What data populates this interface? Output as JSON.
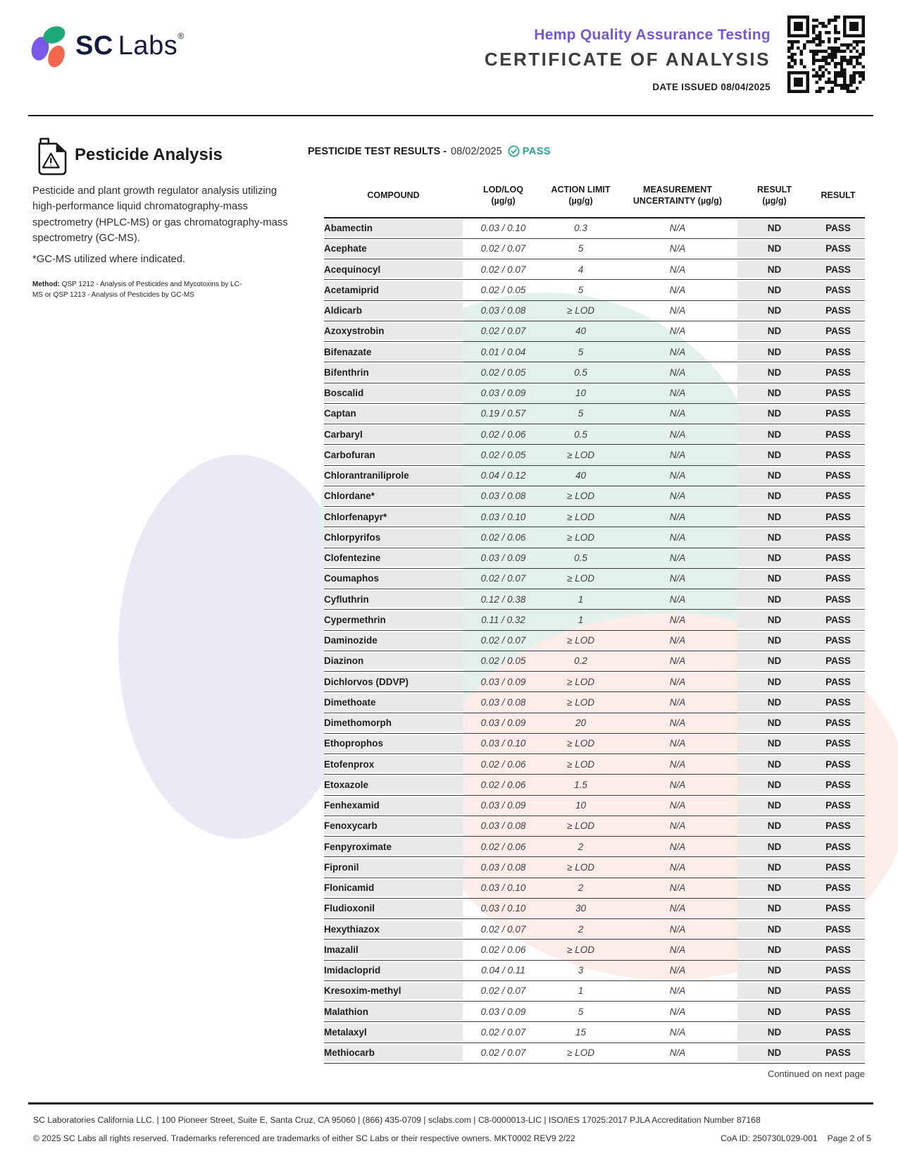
{
  "header": {
    "logo_sc": "SC",
    "logo_labs": "Labs",
    "logo_reg": "®",
    "program": "Hemp Quality Assurance Testing",
    "title": "CERTIFICATE OF ANALYSIS",
    "date_issued": "DATE ISSUED 08/04/2025"
  },
  "section": {
    "title": "Pesticide Analysis",
    "description": "Pesticide and plant growth regulator analysis utilizing high-performance liquid chromatography-mass spectrometry (HPLC-MS) or gas chromatography-mass spectrometry (GC-MS).",
    "note": "*GC-MS utilized where indicated.",
    "method_label": "Method:",
    "method_text": " QSP 1212 - Analysis of Pesticides and Mycotoxins by LC-MS or QSP 1213 - Analysis of Pesticides by GC-MS"
  },
  "results": {
    "heading": "PESTICIDE TEST RESULTS -",
    "date": "08/02/2025",
    "status": "PASS",
    "columns": [
      "COMPOUND",
      "LOD/LOQ\n(µg/g)",
      "ACTION LIMIT\n(µg/g)",
      "MEASUREMENT\nUNCERTAINTY (µg/g)",
      "RESULT\n(µg/g)",
      "RESULT"
    ],
    "rows": [
      {
        "compound": "Abamectin",
        "lod_loq": "0.03 / 0.10",
        "action_limit": "0.3",
        "uncertainty": "N/A",
        "result": "ND",
        "status": "PASS"
      },
      {
        "compound": "Acephate",
        "lod_loq": "0.02 / 0.07",
        "action_limit": "5",
        "uncertainty": "N/A",
        "result": "ND",
        "status": "PASS"
      },
      {
        "compound": "Acequinocyl",
        "lod_loq": "0.02 / 0.07",
        "action_limit": "4",
        "uncertainty": "N/A",
        "result": "ND",
        "status": "PASS"
      },
      {
        "compound": "Acetamiprid",
        "lod_loq": "0.02 / 0.05",
        "action_limit": "5",
        "uncertainty": "N/A",
        "result": "ND",
        "status": "PASS"
      },
      {
        "compound": "Aldicarb",
        "lod_loq": "0.03 / 0.08",
        "action_limit": "≥ LOD",
        "uncertainty": "N/A",
        "result": "ND",
        "status": "PASS"
      },
      {
        "compound": "Azoxystrobin",
        "lod_loq": "0.02 / 0.07",
        "action_limit": "40",
        "uncertainty": "N/A",
        "result": "ND",
        "status": "PASS"
      },
      {
        "compound": "Bifenazate",
        "lod_loq": "0.01 / 0.04",
        "action_limit": "5",
        "uncertainty": "N/A",
        "result": "ND",
        "status": "PASS"
      },
      {
        "compound": "Bifenthrin",
        "lod_loq": "0.02 / 0.05",
        "action_limit": "0.5",
        "uncertainty": "N/A",
        "result": "ND",
        "status": "PASS"
      },
      {
        "compound": "Boscalid",
        "lod_loq": "0.03 / 0.09",
        "action_limit": "10",
        "uncertainty": "N/A",
        "result": "ND",
        "status": "PASS"
      },
      {
        "compound": "Captan",
        "lod_loq": "0.19 / 0.57",
        "action_limit": "5",
        "uncertainty": "N/A",
        "result": "ND",
        "status": "PASS"
      },
      {
        "compound": "Carbaryl",
        "lod_loq": "0.02 / 0.06",
        "action_limit": "0.5",
        "uncertainty": "N/A",
        "result": "ND",
        "status": "PASS"
      },
      {
        "compound": "Carbofuran",
        "lod_loq": "0.02 / 0.05",
        "action_limit": "≥ LOD",
        "uncertainty": "N/A",
        "result": "ND",
        "status": "PASS"
      },
      {
        "compound": "Chlorantraniliprole",
        "lod_loq": "0.04 / 0.12",
        "action_limit": "40",
        "uncertainty": "N/A",
        "result": "ND",
        "status": "PASS"
      },
      {
        "compound": "Chlordane*",
        "lod_loq": "0.03 / 0.08",
        "action_limit": "≥ LOD",
        "uncertainty": "N/A",
        "result": "ND",
        "status": "PASS"
      },
      {
        "compound": "Chlorfenapyr*",
        "lod_loq": "0.03 / 0.10",
        "action_limit": "≥ LOD",
        "uncertainty": "N/A",
        "result": "ND",
        "status": "PASS"
      },
      {
        "compound": "Chlorpyrifos",
        "lod_loq": "0.02 / 0.06",
        "action_limit": "≥ LOD",
        "uncertainty": "N/A",
        "result": "ND",
        "status": "PASS"
      },
      {
        "compound": "Clofentezine",
        "lod_loq": "0.03 / 0.09",
        "action_limit": "0.5",
        "uncertainty": "N/A",
        "result": "ND",
        "status": "PASS"
      },
      {
        "compound": "Coumaphos",
        "lod_loq": "0.02 / 0.07",
        "action_limit": "≥ LOD",
        "uncertainty": "N/A",
        "result": "ND",
        "status": "PASS"
      },
      {
        "compound": "Cyfluthrin",
        "lod_loq": "0.12 / 0.38",
        "action_limit": "1",
        "uncertainty": "N/A",
        "result": "ND",
        "status": "PASS"
      },
      {
        "compound": "Cypermethrin",
        "lod_loq": "0.11 / 0.32",
        "action_limit": "1",
        "uncertainty": "N/A",
        "result": "ND",
        "status": "PASS"
      },
      {
        "compound": "Daminozide",
        "lod_loq": "0.02 / 0.07",
        "action_limit": "≥ LOD",
        "uncertainty": "N/A",
        "result": "ND",
        "status": "PASS"
      },
      {
        "compound": "Diazinon",
        "lod_loq": "0.02 / 0.05",
        "action_limit": "0.2",
        "uncertainty": "N/A",
        "result": "ND",
        "status": "PASS"
      },
      {
        "compound": "Dichlorvos (DDVP)",
        "lod_loq": "0.03 / 0.09",
        "action_limit": "≥ LOD",
        "uncertainty": "N/A",
        "result": "ND",
        "status": "PASS"
      },
      {
        "compound": "Dimethoate",
        "lod_loq": "0.03 / 0.08",
        "action_limit": "≥ LOD",
        "uncertainty": "N/A",
        "result": "ND",
        "status": "PASS"
      },
      {
        "compound": "Dimethomorph",
        "lod_loq": "0.03 / 0.09",
        "action_limit": "20",
        "uncertainty": "N/A",
        "result": "ND",
        "status": "PASS"
      },
      {
        "compound": "Ethoprophos",
        "lod_loq": "0.03 / 0.10",
        "action_limit": "≥ LOD",
        "uncertainty": "N/A",
        "result": "ND",
        "status": "PASS"
      },
      {
        "compound": "Etofenprox",
        "lod_loq": "0.02 / 0.06",
        "action_limit": "≥ LOD",
        "uncertainty": "N/A",
        "result": "ND",
        "status": "PASS"
      },
      {
        "compound": "Etoxazole",
        "lod_loq": "0.02 / 0.06",
        "action_limit": "1.5",
        "uncertainty": "N/A",
        "result": "ND",
        "status": "PASS"
      },
      {
        "compound": "Fenhexamid",
        "lod_loq": "0.03 / 0.09",
        "action_limit": "10",
        "uncertainty": "N/A",
        "result": "ND",
        "status": "PASS"
      },
      {
        "compound": "Fenoxycarb",
        "lod_loq": "0.03 / 0.08",
        "action_limit": "≥ LOD",
        "uncertainty": "N/A",
        "result": "ND",
        "status": "PASS"
      },
      {
        "compound": "Fenpyroximate",
        "lod_loq": "0.02 / 0.06",
        "action_limit": "2",
        "uncertainty": "N/A",
        "result": "ND",
        "status": "PASS"
      },
      {
        "compound": "Fipronil",
        "lod_loq": "0.03 / 0.08",
        "action_limit": "≥ LOD",
        "uncertainty": "N/A",
        "result": "ND",
        "status": "PASS"
      },
      {
        "compound": "Flonicamid",
        "lod_loq": "0.03 / 0.10",
        "action_limit": "2",
        "uncertainty": "N/A",
        "result": "ND",
        "status": "PASS"
      },
      {
        "compound": "Fludioxonil",
        "lod_loq": "0.03 / 0.10",
        "action_limit": "30",
        "uncertainty": "N/A",
        "result": "ND",
        "status": "PASS"
      },
      {
        "compound": "Hexythiazox",
        "lod_loq": "0.02 / 0.07",
        "action_limit": "2",
        "uncertainty": "N/A",
        "result": "ND",
        "status": "PASS"
      },
      {
        "compound": "Imazalil",
        "lod_loq": "0.02 / 0.06",
        "action_limit": "≥ LOD",
        "uncertainty": "N/A",
        "result": "ND",
        "status": "PASS"
      },
      {
        "compound": "Imidacloprid",
        "lod_loq": "0.04 / 0.11",
        "action_limit": "3",
        "uncertainty": "N/A",
        "result": "ND",
        "status": "PASS"
      },
      {
        "compound": "Kresoxim-methyl",
        "lod_loq": "0.02 / 0.07",
        "action_limit": "1",
        "uncertainty": "N/A",
        "result": "ND",
        "status": "PASS"
      },
      {
        "compound": "Malathion",
        "lod_loq": "0.03 / 0.09",
        "action_limit": "5",
        "uncertainty": "N/A",
        "result": "ND",
        "status": "PASS"
      },
      {
        "compound": "Metalaxyl",
        "lod_loq": "0.02 / 0.07",
        "action_limit": "15",
        "uncertainty": "N/A",
        "result": "ND",
        "status": "PASS"
      },
      {
        "compound": "Methiocarb",
        "lod_loq": "0.02 / 0.07",
        "action_limit": "≥ LOD",
        "uncertainty": "N/A",
        "result": "ND",
        "status": "PASS"
      }
    ],
    "continued": "Continued on next page"
  },
  "footer": {
    "line1": "SC Laboratories California LLC. | 100 Pioneer Street, Suite E, Santa Cruz, CA 95060 | (866) 435-0709 | sclabs.com | C8-0000013-LIC | ISO/IES 17025:2017 PJLA Accreditation Number 87168",
    "line2": "© 2025 SC Labs all rights reserved. Trademarks referenced are trademarks of either SC Labs or their respective owners. MKT0002 REV9 2/22",
    "coa_id": "CoA ID: 250730L029-001",
    "page": "Page 2 of 5"
  },
  "colors": {
    "accent_purple": "#7556d4",
    "pass_teal": "#27a394",
    "logo_navy": "#131c3c",
    "logo_dot_purple": "#7a58e8",
    "logo_dot_green": "#20a87d",
    "logo_dot_orange": "#f2684c",
    "cell_gray": "#e9e9e9",
    "wm_lavender": "#ece9f7",
    "wm_teal": "#e3f1ec",
    "wm_pink": "#fcedea"
  }
}
